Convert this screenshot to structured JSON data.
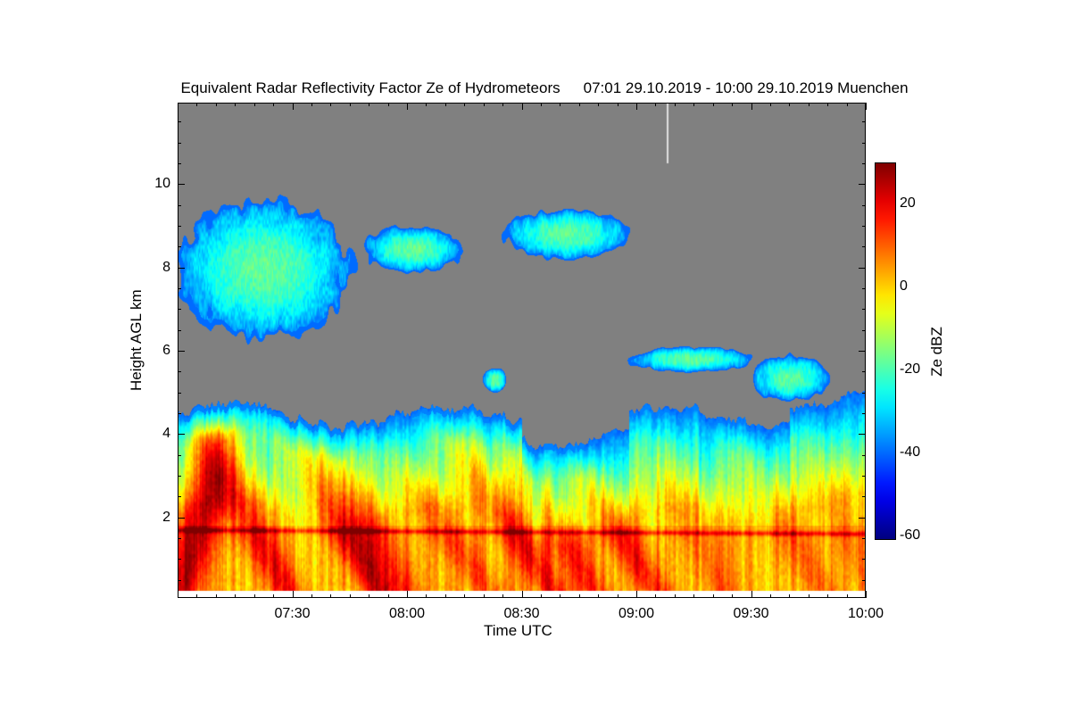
{
  "chart_data": {
    "type": "heatmap",
    "title": "Equivalent Radar Reflectivity Factor Ze of Hydrometeors",
    "time_range": "07:01 29.10.2019 - 10:00 29.10.2019",
    "location": "Muenchen",
    "xlabel": "Time UTC",
    "ylabel": "Height AGL km",
    "x_ticks": [
      "07:30",
      "08:00",
      "08:30",
      "09:00",
      "09:30",
      "10:00"
    ],
    "x_range_utc": [
      "07:00",
      "10:00"
    ],
    "y_ticks": [
      "2",
      "4",
      "6",
      "8",
      "10"
    ],
    "ylim_km": [
      0,
      12
    ],
    "colorbar": {
      "label": "Ze dBZ",
      "ticks": [
        "20",
        "0",
        "-20",
        "-40",
        "-60"
      ],
      "range_dbz": [
        -61,
        30
      ],
      "colormap": "jet"
    },
    "no_data_color": "#808080",
    "features": [
      {
        "name": "stratiform rain layer",
        "time": [
          "07:00",
          "10:00"
        ],
        "height_km": [
          0.2,
          4.6
        ],
        "dbz_range": [
          -40,
          25
        ]
      },
      {
        "name": "melting layer bright band",
        "time": [
          "07:00",
          "10:00"
        ],
        "height_km": [
          1.6,
          1.8
        ],
        "dbz": 20
      },
      {
        "name": "upper cloud",
        "time": [
          "07:00",
          "07:45"
        ],
        "height_km": [
          6.3,
          9.6
        ],
        "dbz_range": [
          -40,
          -15
        ]
      },
      {
        "name": "upper cloud",
        "time": [
          "07:48",
          "08:15"
        ],
        "height_km": [
          7.9,
          9.0
        ],
        "dbz_range": [
          -40,
          -25
        ]
      },
      {
        "name": "upper cloud",
        "time": [
          "08:25",
          "08:58"
        ],
        "height_km": [
          8.2,
          9.4
        ],
        "dbz_range": [
          -40,
          -25
        ]
      },
      {
        "name": "mid cloud",
        "time": [
          "08:57",
          "09:55"
        ],
        "height_km": [
          4.6,
          6.2
        ],
        "dbz_range": [
          -40,
          -20
        ]
      }
    ]
  }
}
